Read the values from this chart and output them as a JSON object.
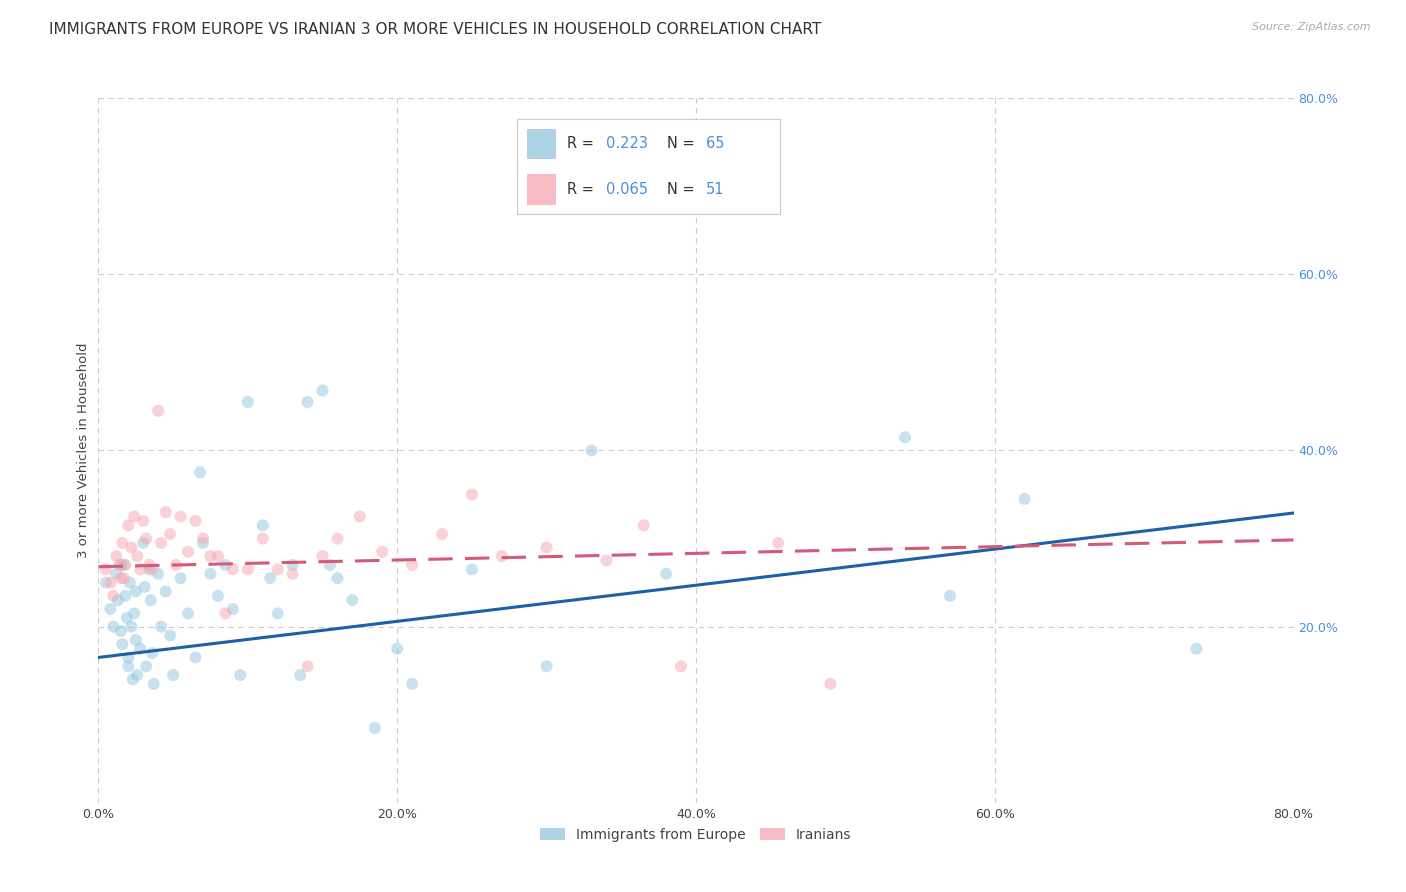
{
  "title": "IMMIGRANTS FROM EUROPE VS IRANIAN 3 OR MORE VEHICLES IN HOUSEHOLD CORRELATION CHART",
  "source": "Source: ZipAtlas.com",
  "ylabel": "3 or more Vehicles in Household",
  "xlim": [
    0.0,
    0.8
  ],
  "ylim": [
    0.0,
    0.8
  ],
  "xtick_labels": [
    "0.0%",
    "20.0%",
    "40.0%",
    "60.0%",
    "80.0%"
  ],
  "xtick_values": [
    0.0,
    0.2,
    0.4,
    0.6,
    0.8
  ],
  "ytick_values": [
    0.2,
    0.4,
    0.6,
    0.8
  ],
  "right_ytick_labels": [
    "20.0%",
    "40.0%",
    "60.0%",
    "80.0%"
  ],
  "right_ytick_values": [
    0.2,
    0.4,
    0.6,
    0.8
  ],
  "blue_color": "#92c5de",
  "pink_color": "#f4a4b0",
  "blue_line_color": "#1d5fa8",
  "pink_line_color": "#d45a78",
  "blue_label": "Immigrants from Europe",
  "pink_label": "Iranians",
  "legend_R_blue": "0.223",
  "legend_N_blue": "65",
  "legend_R_pink": "0.065",
  "legend_N_pink": "51",
  "blue_intercept": 0.165,
  "blue_slope": 0.205,
  "pink_intercept": 0.268,
  "pink_slope": 0.038,
  "blue_x": [
    0.005,
    0.008,
    0.01,
    0.012,
    0.013,
    0.015,
    0.015,
    0.016,
    0.017,
    0.018,
    0.019,
    0.02,
    0.02,
    0.021,
    0.022,
    0.023,
    0.024,
    0.025,
    0.025,
    0.026,
    0.028,
    0.03,
    0.031,
    0.032,
    0.034,
    0.035,
    0.036,
    0.037,
    0.04,
    0.042,
    0.045,
    0.048,
    0.05,
    0.055,
    0.06,
    0.065,
    0.068,
    0.07,
    0.075,
    0.08,
    0.085,
    0.09,
    0.095,
    0.1,
    0.11,
    0.115,
    0.12,
    0.13,
    0.135,
    0.14,
    0.15,
    0.155,
    0.16,
    0.17,
    0.185,
    0.2,
    0.21,
    0.25,
    0.3,
    0.33,
    0.38,
    0.54,
    0.57,
    0.62,
    0.735
  ],
  "blue_y": [
    0.25,
    0.22,
    0.2,
    0.26,
    0.23,
    0.27,
    0.195,
    0.18,
    0.27,
    0.235,
    0.21,
    0.165,
    0.155,
    0.25,
    0.2,
    0.14,
    0.215,
    0.24,
    0.185,
    0.145,
    0.175,
    0.295,
    0.245,
    0.155,
    0.265,
    0.23,
    0.17,
    0.135,
    0.26,
    0.2,
    0.24,
    0.19,
    0.145,
    0.255,
    0.215,
    0.165,
    0.375,
    0.295,
    0.26,
    0.235,
    0.27,
    0.22,
    0.145,
    0.455,
    0.315,
    0.255,
    0.215,
    0.27,
    0.145,
    0.455,
    0.468,
    0.27,
    0.255,
    0.23,
    0.085,
    0.175,
    0.135,
    0.265,
    0.155,
    0.4,
    0.26,
    0.415,
    0.235,
    0.345,
    0.175
  ],
  "pink_x": [
    0.005,
    0.008,
    0.01,
    0.012,
    0.014,
    0.015,
    0.016,
    0.017,
    0.018,
    0.02,
    0.022,
    0.024,
    0.026,
    0.028,
    0.03,
    0.032,
    0.034,
    0.036,
    0.04,
    0.042,
    0.045,
    0.048,
    0.052,
    0.055,
    0.06,
    0.065,
    0.07,
    0.075,
    0.08,
    0.085,
    0.09,
    0.1,
    0.11,
    0.12,
    0.13,
    0.14,
    0.15,
    0.16,
    0.175,
    0.19,
    0.21,
    0.23,
    0.25,
    0.27,
    0.3,
    0.34,
    0.365,
    0.39,
    0.42,
    0.455,
    0.49
  ],
  "pink_y": [
    0.265,
    0.25,
    0.235,
    0.28,
    0.27,
    0.255,
    0.295,
    0.255,
    0.27,
    0.315,
    0.29,
    0.325,
    0.28,
    0.265,
    0.32,
    0.3,
    0.27,
    0.265,
    0.445,
    0.295,
    0.33,
    0.305,
    0.27,
    0.325,
    0.285,
    0.32,
    0.3,
    0.28,
    0.28,
    0.215,
    0.265,
    0.265,
    0.3,
    0.265,
    0.26,
    0.155,
    0.28,
    0.3,
    0.325,
    0.285,
    0.27,
    0.305,
    0.35,
    0.28,
    0.29,
    0.275,
    0.315,
    0.155,
    0.69,
    0.295,
    0.135
  ],
  "background_color": "#ffffff",
  "grid_color": "#cccccc",
  "title_fontsize": 11,
  "axis_fontsize": 9.5,
  "tick_fontsize": 9,
  "marker_size": 75,
  "marker_alpha": 0.5,
  "line_width": 2.2
}
